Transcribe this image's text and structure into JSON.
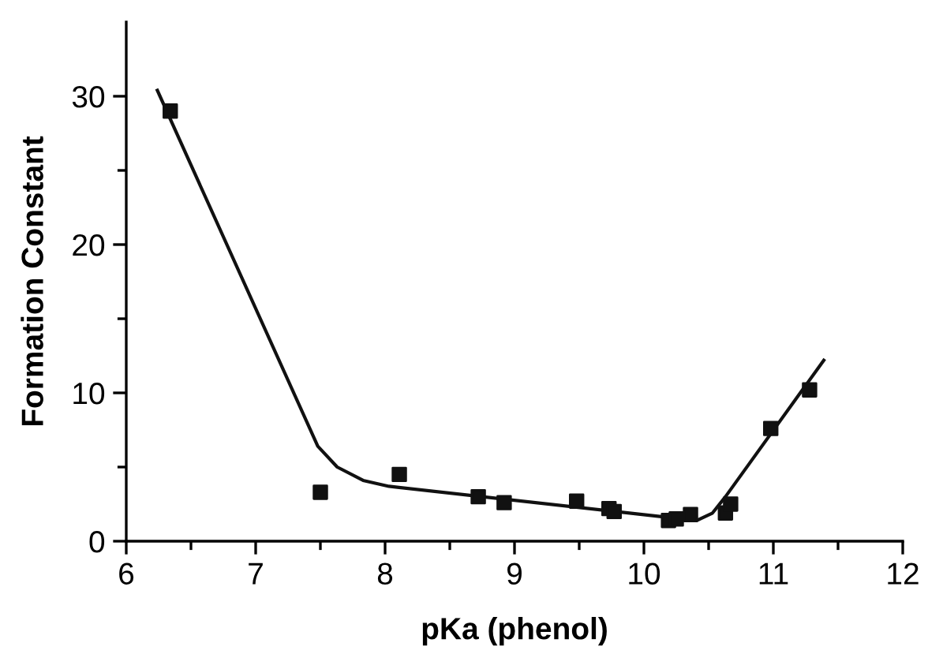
{
  "chart_data": {
    "type": "scatter",
    "xlabel": "pKa (phenol)",
    "ylabel": "Formation Constant",
    "xlim": [
      6,
      12
    ],
    "ylim": [
      0,
      35
    ],
    "xticks": [
      6,
      {
        "value": 6.5,
        "label": null
      },
      7,
      {
        "value": 7.5,
        "label": null
      },
      8,
      {
        "value": 8.5,
        "label": null
      },
      9,
      {
        "value": 9.5,
        "label": null
      },
      10,
      {
        "value": 10.5,
        "label": null
      },
      11,
      {
        "value": 11.5,
        "label": null
      },
      12
    ],
    "yticks": [
      0,
      {
        "value": 5,
        "label": null
      },
      10,
      {
        "value": 15,
        "label": null
      },
      20,
      {
        "value": 25,
        "label": null
      },
      30
    ],
    "grid": false,
    "series": [
      {
        "color": "#111111",
        "marker": "square",
        "x": [
          6.34,
          7.5,
          8.11,
          8.72,
          8.92,
          9.48,
          9.73,
          9.77,
          10.19,
          10.25,
          10.36,
          10.63,
          10.67,
          10.98,
          11.28
        ],
        "values": [
          29.0,
          3.3,
          4.5,
          3.0,
          2.6,
          2.7,
          2.2,
          2.0,
          1.4,
          1.5,
          1.8,
          1.9,
          2.5,
          7.6,
          10.2
        ]
      },
      {
        "type": "line",
        "color": "#111111",
        "marker": "none",
        "line_style": "solid",
        "x": [
          6.24,
          7.48,
          7.63,
          7.83,
          8.03,
          10.19,
          10.41,
          10.53,
          10.63,
          11.39
        ],
        "values": [
          30.4,
          6.4,
          5.0,
          4.1,
          3.7,
          1.6,
          1.4,
          1.9,
          3.0,
          12.2
        ]
      }
    ]
  }
}
